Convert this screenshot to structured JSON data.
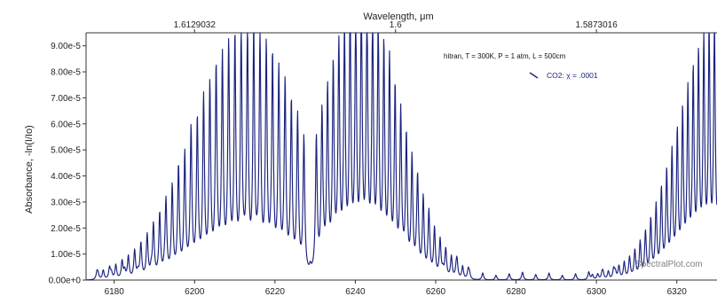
{
  "chart_data": {
    "type": "line",
    "title": "",
    "xlabel": "",
    "ylabel": "Absorbance, -ln(I/Io)",
    "top_xlabel": "Wavelength, μm",
    "xlim": [
      6173,
      6330
    ],
    "ylim": [
      0,
      9.5e-05
    ],
    "x_ticks": [
      6180,
      6200,
      6220,
      6240,
      6260,
      6280,
      6300,
      6320
    ],
    "x_tick_labels": [
      "6180",
      "6200",
      "6220",
      "6240",
      "6260",
      "6280",
      "6300",
      "6320"
    ],
    "top_ticks_wavenumber": [
      6200,
      6250,
      6300
    ],
    "top_tick_labels": [
      "1.6129032",
      "1.6",
      "1.5873016"
    ],
    "y_ticks": [
      0,
      1e-05,
      2e-05,
      3e-05,
      4e-05,
      5e-05,
      6e-05,
      7e-05,
      8e-05,
      9e-05
    ],
    "y_tick_labels": [
      "0.00e+0",
      "1.00e-5",
      "2.00e-5",
      "3.00e-5",
      "4.00e-5",
      "5.00e-5",
      "6.00e-5",
      "7.00e-5",
      "8.00e-5",
      "9.00e-5"
    ],
    "grid": false,
    "legend_header": "hitran, T = 300K, P = 1 atm, L = 500cm",
    "legend_position": "top-right",
    "series": [
      {
        "name": "CO2: χ = .0001",
        "color": "#1a237e",
        "bands": [
          {
            "branch": "P",
            "start": 6227.2,
            "step": -1.56,
            "count": 34,
            "peak_index": 9,
            "peak_value": 8.35e-05,
            "sigma": 8.5
          },
          {
            "branch": "R",
            "start": 6230.3,
            "step": 1.4,
            "count": 28,
            "peak_index": 8,
            "peak_value": 9.1e-05,
            "sigma": 7.0
          },
          {
            "branch": "hot",
            "start": 6299.0,
            "step": 1.32,
            "count": 25,
            "peak_index": 24,
            "peak_value": 8.5e-05,
            "sigma": 7.5
          }
        ],
        "minor_lines": {
          "start": 6176.0,
          "step": 3.3,
          "count": 40,
          "value": 2.8e-06
        }
      }
    ]
  },
  "watermark": "SpectralPlot.com"
}
